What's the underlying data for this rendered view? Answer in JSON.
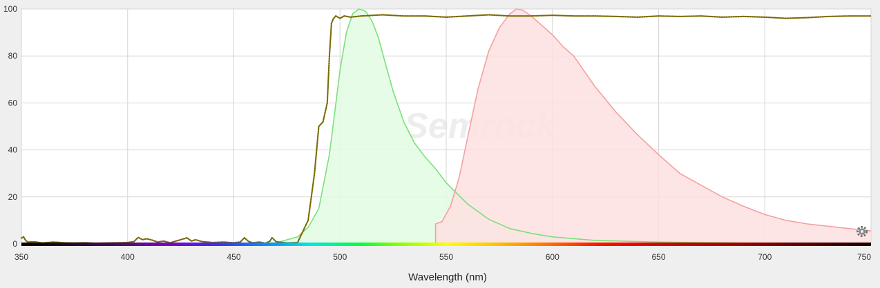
{
  "chart_data": {
    "type": "area",
    "title": "",
    "xlabel": "Wavelength (nm)",
    "ylabel": "",
    "xlim": [
      350,
      750
    ],
    "ylim": [
      0,
      100
    ],
    "xticks": [
      350,
      400,
      450,
      500,
      550,
      600,
      650,
      700,
      750
    ],
    "yticks": [
      0,
      20,
      40,
      60,
      80,
      100
    ],
    "grid": true,
    "legend": "none",
    "watermark": "Semrock",
    "series": [
      {
        "style": "filled-area",
        "color": "#7be07b",
        "fill": "#e3fbe3",
        "x": [
          460,
          470,
          480,
          485,
          490,
          495,
          500,
          503,
          506,
          509,
          512,
          515,
          518,
          521,
          525,
          530,
          535,
          540,
          545,
          550,
          560,
          570,
          580,
          590,
          600,
          620,
          650,
          700,
          750
        ],
        "y": [
          0,
          0.5,
          3,
          7,
          15,
          38,
          74,
          90,
          98,
          100,
          99,
          95,
          88,
          78,
          65,
          52,
          43,
          37,
          32,
          26,
          17,
          10.5,
          6.5,
          4.5,
          3,
          1.5,
          0.8,
          0.3,
          0.1
        ]
      },
      {
        "style": "filled-area",
        "color": "#f4a0a0",
        "fill": "#fde0e0",
        "x": [
          545,
          545,
          548,
          552,
          556,
          560,
          565,
          570,
          575,
          580,
          583,
          586,
          590,
          595,
          600,
          605,
          610,
          620,
          630,
          640,
          650,
          660,
          670,
          680,
          690,
          700,
          710,
          720,
          730,
          740,
          750
        ],
        "y": [
          0,
          8.5,
          9.5,
          16,
          28,
          45,
          66,
          82,
          92,
          98,
          100,
          99.5,
          97,
          93,
          89,
          84,
          80,
          67,
          56,
          46.5,
          38,
          30,
          25,
          20,
          16,
          12.5,
          10,
          8.5,
          7.5,
          6.5,
          5.5
        ]
      },
      {
        "style": "dotted-line",
        "color": "#7a6a00",
        "x": [
          350,
          351,
          352,
          353,
          356,
          360,
          365,
          370,
          375,
          380,
          385,
          390,
          395,
          400,
          403,
          405,
          407,
          409,
          412,
          414,
          417,
          420,
          425,
          428,
          430,
          432,
          435,
          440,
          445,
          450,
          453,
          455,
          457,
          459,
          462,
          465,
          467,
          468,
          470,
          475,
          480,
          485,
          488,
          490,
          492,
          494,
          495,
          496,
          497,
          498,
          500,
          502,
          505,
          510,
          520,
          530,
          540,
          550,
          560,
          570,
          580,
          590,
          600,
          610,
          620,
          630,
          640,
          650,
          660,
          670,
          680,
          690,
          700,
          710,
          720,
          730,
          740,
          750
        ],
        "y": [
          2.5,
          3,
          1.5,
          0.8,
          0.9,
          0.4,
          0.8,
          0.5,
          0.4,
          0.5,
          0.3,
          0.4,
          0.5,
          0.6,
          1,
          2.8,
          1.8,
          2.2,
          1.5,
          0.8,
          1.2,
          0.5,
          1.8,
          2.6,
          1.2,
          1.8,
          1,
          0.6,
          0.8,
          0.5,
          0.8,
          2.6,
          1,
          0.5,
          0.8,
          0.3,
          1.2,
          2.6,
          0.9,
          0.4,
          0.6,
          10,
          30,
          50,
          52,
          60,
          80,
          94,
          96,
          97,
          96,
          97,
          96.5,
          97,
          97.5,
          97,
          97,
          96.5,
          97,
          97.5,
          97,
          97,
          97.3,
          97,
          97,
          96.8,
          96.5,
          97,
          96.8,
          97,
          96.5,
          96.8,
          96.5,
          96,
          96.3,
          96.8,
          97,
          97
        ]
      }
    ]
  },
  "spectrum_bar": {
    "colors": [
      "#000000",
      "#3a1050",
      "#7a00c8",
      "#3c2cff",
      "#00a0ff",
      "#00e8e0",
      "#00ff40",
      "#80ff00",
      "#ffff00",
      "#ffc000",
      "#ff7000",
      "#ff1000",
      "#e00000",
      "#a00000",
      "#500000",
      "#1a0000"
    ],
    "positions": [
      0.0,
      0.1,
      0.17,
      0.23,
      0.3,
      0.34,
      0.4,
      0.44,
      0.5,
      0.56,
      0.62,
      0.68,
      0.74,
      0.84,
      0.93,
      1.0
    ]
  },
  "icons": {
    "settings": "gear-icon"
  }
}
